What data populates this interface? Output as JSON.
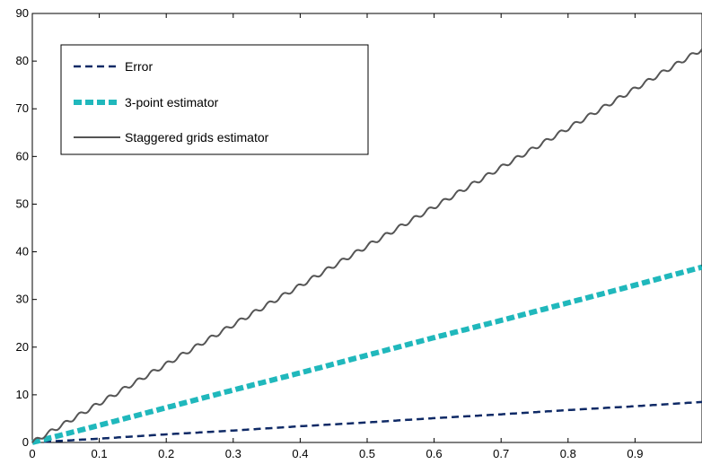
{
  "chart_data": {
    "type": "line",
    "title": "",
    "xlabel": "",
    "ylabel": "",
    "xlim": [
      0,
      1
    ],
    "ylim": [
      0,
      90
    ],
    "grid": false,
    "legend_position": "top-left",
    "x_ticks": [
      "0",
      "0.1",
      "0.2",
      "0.3",
      "0.4",
      "0.5",
      "0.6",
      "0.7",
      "0.8",
      "0.9"
    ],
    "x_tick_values": [
      0,
      0.1,
      0.2,
      0.3,
      0.4,
      0.5,
      0.6,
      0.7,
      0.8,
      0.9
    ],
    "y_ticks": [
      "0",
      "10",
      "20",
      "30",
      "40",
      "50",
      "60",
      "70",
      "80",
      "90"
    ],
    "y_tick_values": [
      0,
      10,
      20,
      30,
      40,
      50,
      60,
      70,
      80,
      90
    ],
    "series": [
      {
        "name": "Error",
        "color": "#0f2a66",
        "style": "dashed",
        "x": [
          0,
          0.1,
          0.2,
          0.3,
          0.4,
          0.5,
          0.6,
          0.7,
          0.8,
          0.9,
          1.0
        ],
        "values": [
          0,
          0.8,
          1.7,
          2.5,
          3.4,
          4.2,
          5.1,
          5.9,
          6.8,
          7.6,
          8.5
        ]
      },
      {
        "name": "3-point estimator",
        "color": "#20b8bc",
        "style": "thick-dashed",
        "x": [
          0,
          0.1,
          0.2,
          0.3,
          0.4,
          0.5,
          0.6,
          0.7,
          0.8,
          0.9,
          1.0
        ],
        "values": [
          0,
          3.6,
          7.3,
          11.0,
          14.6,
          18.3,
          22.0,
          25.6,
          29.3,
          33.0,
          36.8
        ]
      },
      {
        "name": "Staggered grids estimator",
        "color": "#555555",
        "style": "solid",
        "x": [
          0,
          0.1,
          0.2,
          0.3,
          0.4,
          0.5,
          0.6,
          0.7,
          0.8,
          0.9,
          1.0
        ],
        "values": [
          0,
          8.2,
          16.4,
          24.7,
          32.9,
          41.2,
          49.4,
          57.7,
          65.9,
          74.2,
          82.5
        ]
      }
    ]
  }
}
